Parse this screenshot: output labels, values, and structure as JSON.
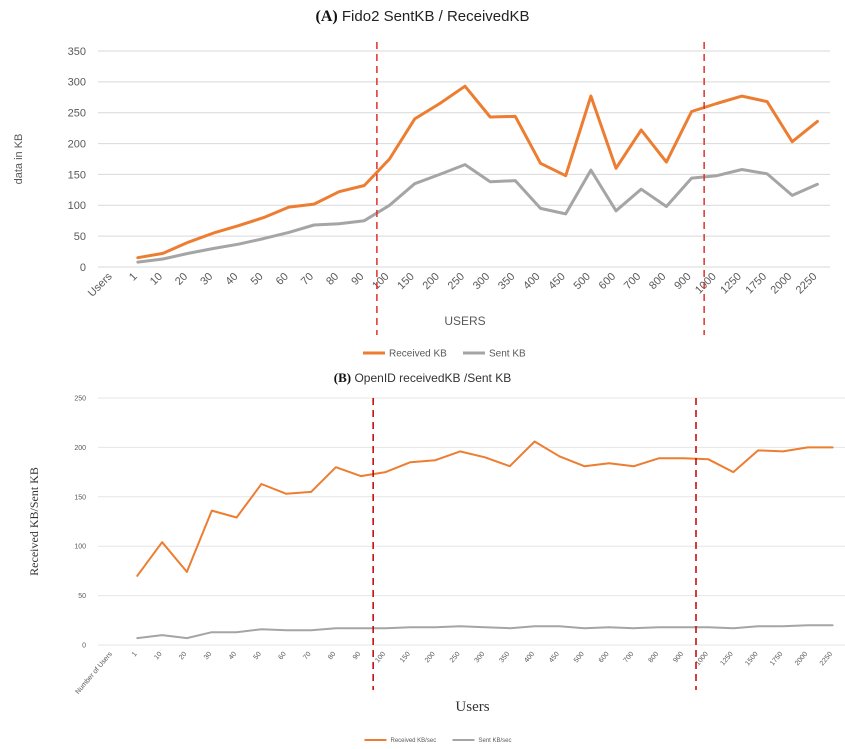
{
  "chart_data": [
    {
      "type": "line",
      "panel": "(A)",
      "title": "Fido2   SentKB / ReceivedKB",
      "xlabel": "USERS",
      "ylabel": "data in KB",
      "ylim": [
        0,
        350
      ],
      "yticks": [
        0,
        50,
        100,
        150,
        200,
        250,
        300,
        350
      ],
      "categories": [
        "Users",
        "1",
        "10",
        "20",
        "30",
        "40",
        "50",
        "60",
        "70",
        "80",
        "90",
        "100",
        "150",
        "200",
        "250",
        "300",
        "350",
        "400",
        "450",
        "500",
        "600",
        "700",
        "800",
        "900",
        "1000",
        "1250",
        "1750",
        "2000",
        "2250"
      ],
      "series": [
        {
          "name": "Received KB",
          "color": "#ED7D31",
          "values": [
            null,
            15,
            22,
            40,
            55,
            67,
            80,
            97,
            102,
            122,
            132,
            175,
            240,
            265,
            293,
            243,
            244,
            168,
            148,
            277,
            160,
            222,
            170,
            252,
            265,
            277,
            268,
            203,
            236
          ]
        },
        {
          "name": "Sent KB",
          "color": "#A5A5A5",
          "values": [
            null,
            8,
            13,
            22,
            30,
            37,
            46,
            56,
            68,
            70,
            75,
            100,
            135,
            150,
            166,
            138,
            140,
            95,
            86,
            157,
            91,
            126,
            98,
            144,
            148,
            158,
            151,
            116,
            134
          ]
        }
      ],
      "legend": "bottom",
      "grid": true,
      "reference_lines_after": [
        "90",
        "900"
      ]
    },
    {
      "type": "line",
      "panel": "(B)",
      "title": "OpenID receivedKB /Sent KB",
      "xlabel": "Users",
      "ylabel": "Received KB/Sent KB",
      "ylim": [
        0,
        250
      ],
      "yticks": [
        0,
        50,
        100,
        150,
        200,
        250
      ],
      "categories": [
        "Number of Users",
        "1",
        "10",
        "20",
        "30",
        "40",
        "50",
        "60",
        "70",
        "80",
        "90",
        "100",
        "150",
        "200",
        "250",
        "300",
        "350",
        "400",
        "450",
        "500",
        "600",
        "700",
        "800",
        "900",
        "1000",
        "1250",
        "1500",
        "1750",
        "2000",
        "2250"
      ],
      "series": [
        {
          "name": "Received KB/sec",
          "color": "#ED7D31",
          "values": [
            null,
            70,
            104,
            74,
            136,
            129,
            163,
            153,
            155,
            180,
            171,
            175,
            185,
            187,
            196,
            190,
            181,
            206,
            191,
            181,
            184,
            181,
            189,
            189,
            188,
            175,
            197,
            196,
            200,
            200
          ]
        },
        {
          "name": "Sent KB/sec",
          "color": "#A5A5A5",
          "values": [
            null,
            7,
            10,
            7,
            13,
            13,
            16,
            15,
            15,
            17,
            17,
            17,
            18,
            18,
            19,
            18,
            17,
            19,
            19,
            17,
            18,
            17,
            18,
            18,
            18,
            17,
            19,
            19,
            20,
            20
          ]
        }
      ],
      "legend": "bottom",
      "grid": true,
      "reference_lines_after": [
        "90",
        "900"
      ]
    }
  ]
}
